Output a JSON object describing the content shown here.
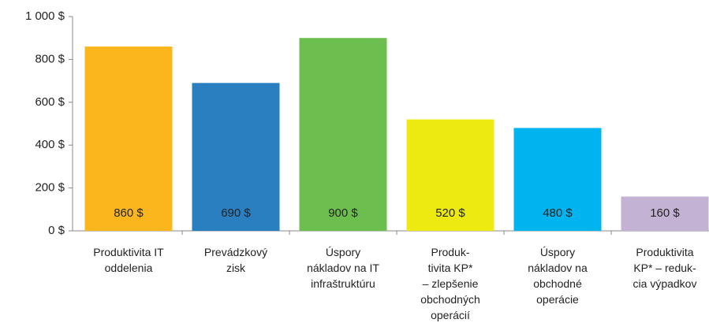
{
  "chart_data": {
    "type": "bar",
    "categories": [
      "Produktivita IT\noddelenia",
      "Prevádzkový\nzisk",
      "Úspory\nnákladov na IT\ninfraštruktúru",
      "Produk-\ntivita KP*\n– zlepšenie\nobchodných\noperácií",
      "Úspory\nnákladov na\nobchodné\noperácie",
      "Produktivita\nKP* – reduk-\ncia výpadkov"
    ],
    "values": [
      860,
      690,
      900,
      520,
      480,
      160
    ],
    "value_labels": [
      "860 $",
      "690 $",
      "900 $",
      "520 $",
      "480 $",
      "160 $"
    ],
    "colors": [
      "#fbb61e",
      "#2a7fc0",
      "#6cbf4f",
      "#ecea10",
      "#00b4ef",
      "#c4b2d4"
    ],
    "ylim": [
      0,
      1000
    ],
    "yticks": [
      {
        "value": 0,
        "label": "0 $"
      },
      {
        "value": 200,
        "label": "200 $"
      },
      {
        "value": 400,
        "label": "400 $"
      },
      {
        "value": 600,
        "label": "600 $"
      },
      {
        "value": 800,
        "label": "800 $"
      },
      {
        "value": 1000,
        "label": "1 000 $"
      }
    ],
    "grid": false
  }
}
